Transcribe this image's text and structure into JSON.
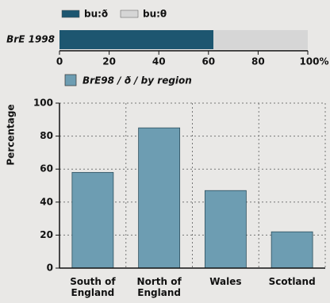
{
  "chart_data": [
    {
      "type": "stacked-bar",
      "categories": [
        "BrE 1998"
      ],
      "series": [
        {
          "name": "bu:ð",
          "color": "#1d5670",
          "values": [
            62
          ]
        },
        {
          "name": "bu:θ",
          "color": "#d6d6d6",
          "values": [
            38
          ]
        }
      ],
      "xlim": [
        0,
        100
      ],
      "xticks": [
        0,
        20,
        40,
        60,
        80,
        {
          "value": 100,
          "label": "100%"
        }
      ]
    },
    {
      "type": "bar",
      "y_label": "Percentage",
      "categories": [
        "South of England",
        "North of England",
        "Wales",
        "Scotland"
      ],
      "series": [
        {
          "name": "BrE98 / ð / by region",
          "color": "#6d9db2",
          "values": [
            58,
            85,
            47,
            22
          ]
        }
      ],
      "ylim": [
        0,
        100
      ],
      "yticks": [
        0,
        20,
        40,
        60,
        80,
        100
      ],
      "grid": true
    }
  ]
}
